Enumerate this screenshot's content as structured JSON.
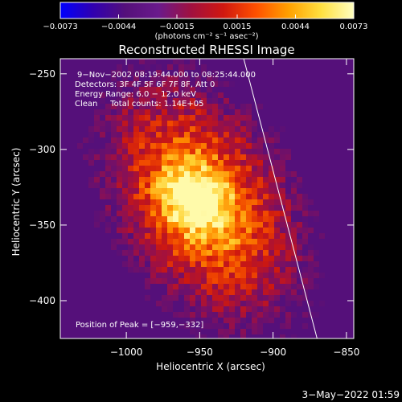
{
  "chart_data": {
    "type": "heatmap",
    "title": "Reconstructed RHESSI Image",
    "xlabel": "Heliocentric X (arcsec)",
    "ylabel": "Heliocentric Y (arcsec)",
    "xlim": [
      -1045,
      -845
    ],
    "ylim": [
      -425,
      -240
    ],
    "x_ticks": [
      -1000,
      -950,
      -900,
      -850
    ],
    "x_tick_labels": [
      "−1000",
      "−950",
      "−900",
      "−850"
    ],
    "y_ticks": [
      -250,
      -300,
      -350,
      -400
    ],
    "y_tick_labels": [
      "−250",
      "−300",
      "−350",
      "−400"
    ],
    "annotations": [
      "9−Nov−2002 08:19:44.000 to 08:25:44.000",
      "Detectors: 3F 4F 5F 6F 7F 8F, Att 0",
      "Energy Range: 6.0 − 12.0 keV",
      "Clean     Total counts: 1.14E+05",
      "Position of Peak = [−959,−332]"
    ],
    "peak_position": [
      -959,
      -332
    ],
    "colorbar": {
      "range": [
        -0.0073,
        0.0073
      ],
      "ticks": [
        -0.0073,
        -0.0044,
        -0.0015,
        0.0015,
        0.0044,
        0.0073
      ],
      "tick_labels": [
        "−0.0073",
        "−0.0044",
        "−0.0015",
        "0.0015",
        "0.0044",
        "0.0073"
      ],
      "unit_label": "(photons cm⁻² s⁻¹ asec⁻²)",
      "colormap": [
        "#0000ff",
        "#3000b0",
        "#55107a",
        "#6a1a8c",
        "#a01040",
        "#d01810",
        "#ff5000",
        "#ffa000",
        "#ffe040",
        "#ffffc0"
      ]
    },
    "limb_line": [
      [
        -920,
        -240
      ],
      [
        -870,
        -425
      ]
    ],
    "grid": false,
    "legend": "none"
  },
  "timestamp": "3−May−2022 01:59"
}
